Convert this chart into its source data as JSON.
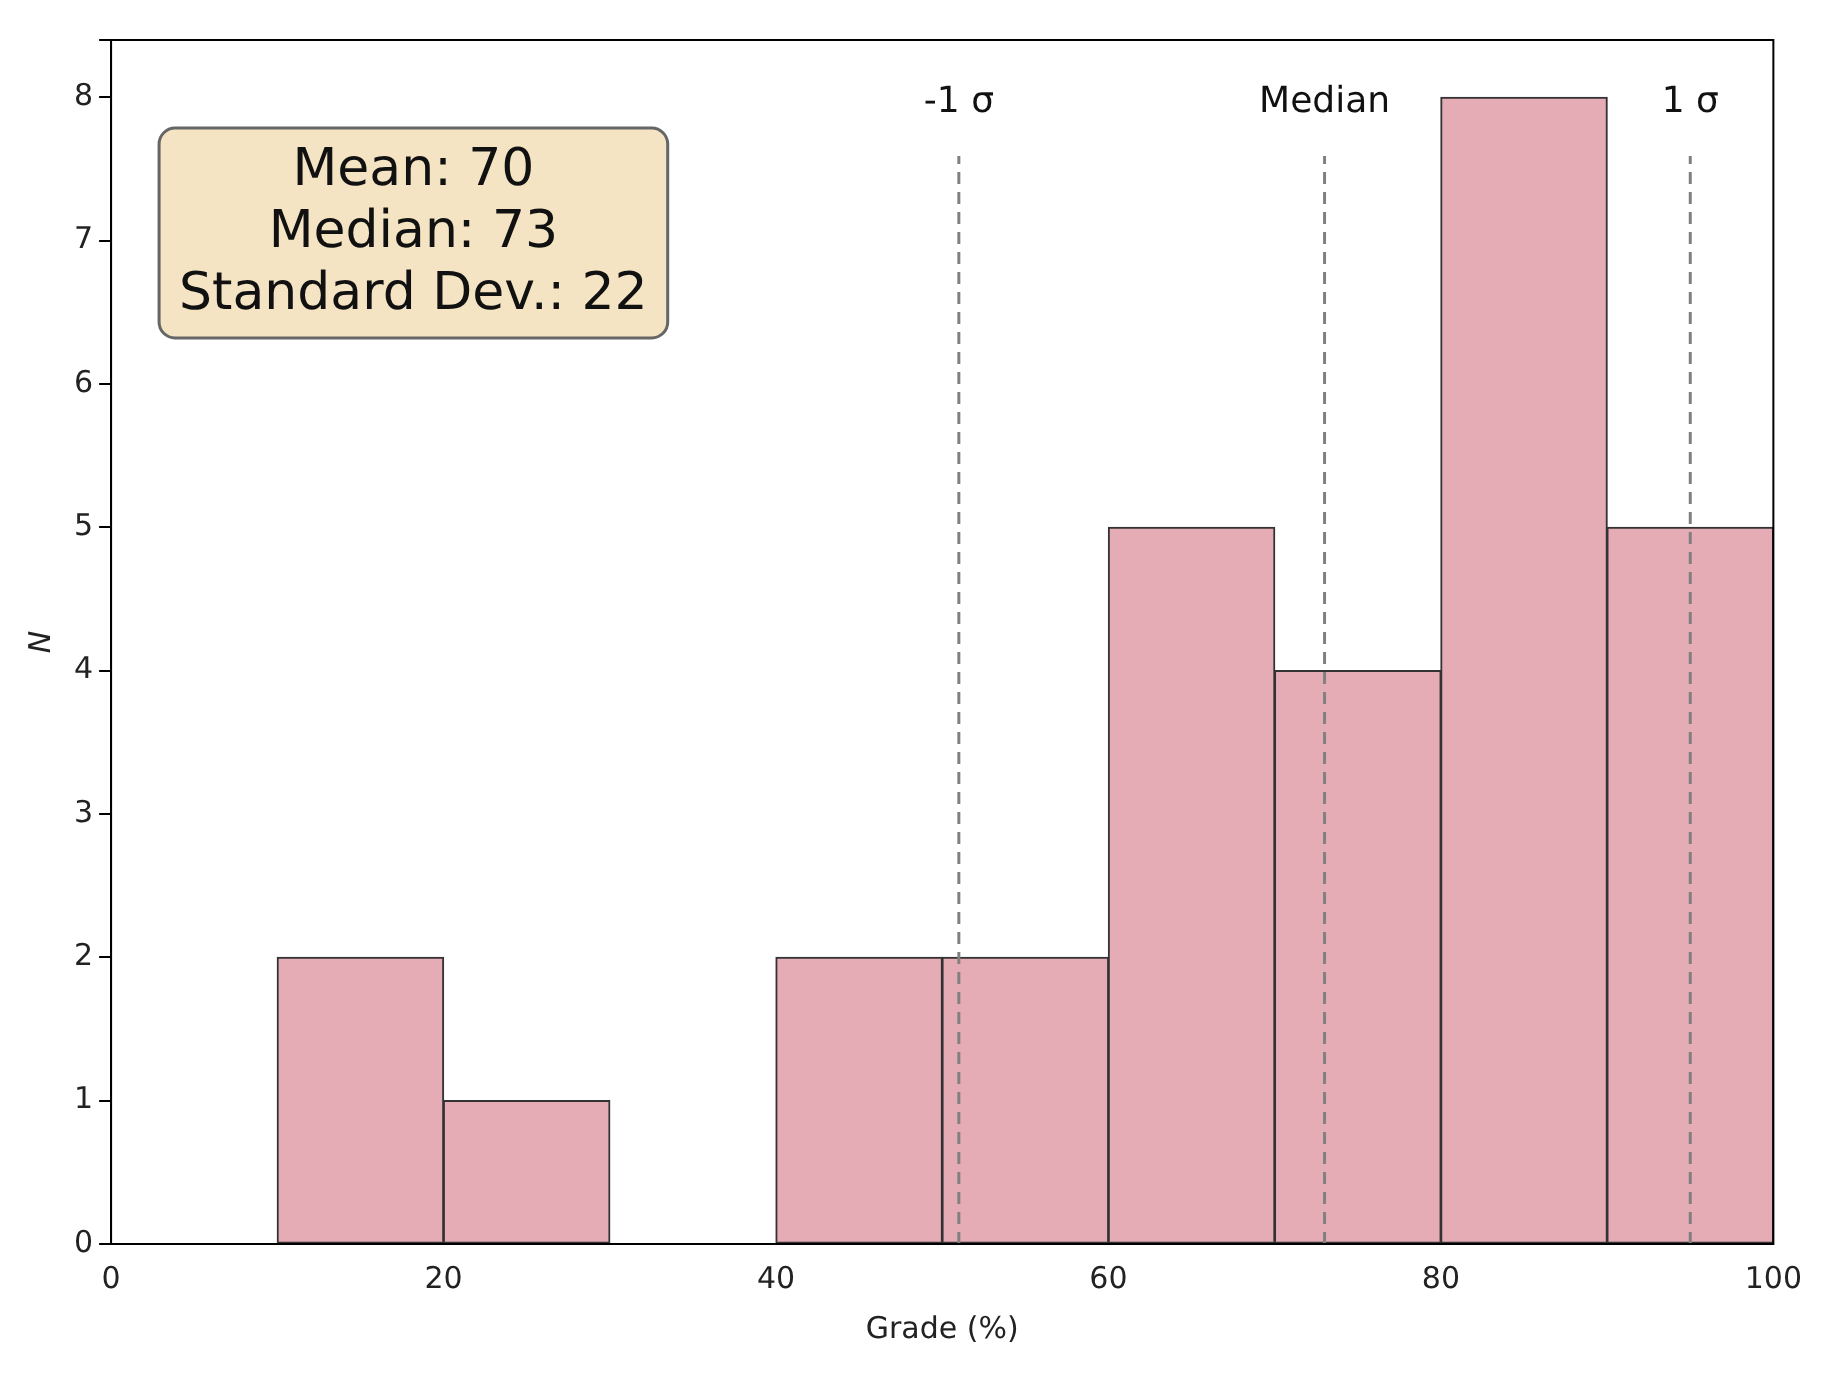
{
  "chart_data": {
    "type": "histogram",
    "xlabel": "Grade (%)",
    "ylabel": "N",
    "bins": [
      0,
      10,
      20,
      30,
      40,
      50,
      60,
      70,
      80,
      90,
      100
    ],
    "values": [
      0,
      2,
      1,
      0,
      2,
      2,
      5,
      4,
      8,
      5
    ],
    "color": "#e5acb6",
    "xlim": [
      0,
      100
    ],
    "xticks": [
      0,
      20,
      40,
      60,
      80,
      100
    ],
    "ylim": [
      0,
      8.4
    ],
    "yticks": [
      0,
      1,
      2,
      3,
      4,
      5,
      6,
      7,
      8
    ],
    "grid": false,
    "legend": false,
    "ref_lines": [
      {
        "axis": "x",
        "value": 51,
        "label": "-1 σ",
        "color": "#808080",
        "line_style": "dashed"
      },
      {
        "axis": "x",
        "value": 73,
        "label": "Median",
        "color": "#808080",
        "line_style": "dashed"
      },
      {
        "axis": "x",
        "value": 95,
        "label": "1 σ",
        "color": "#808080",
        "line_style": "dashed"
      }
    ],
    "annotations": [
      "Mean: 70",
      "Median: 73",
      "Standard Dev.: 22"
    ]
  }
}
